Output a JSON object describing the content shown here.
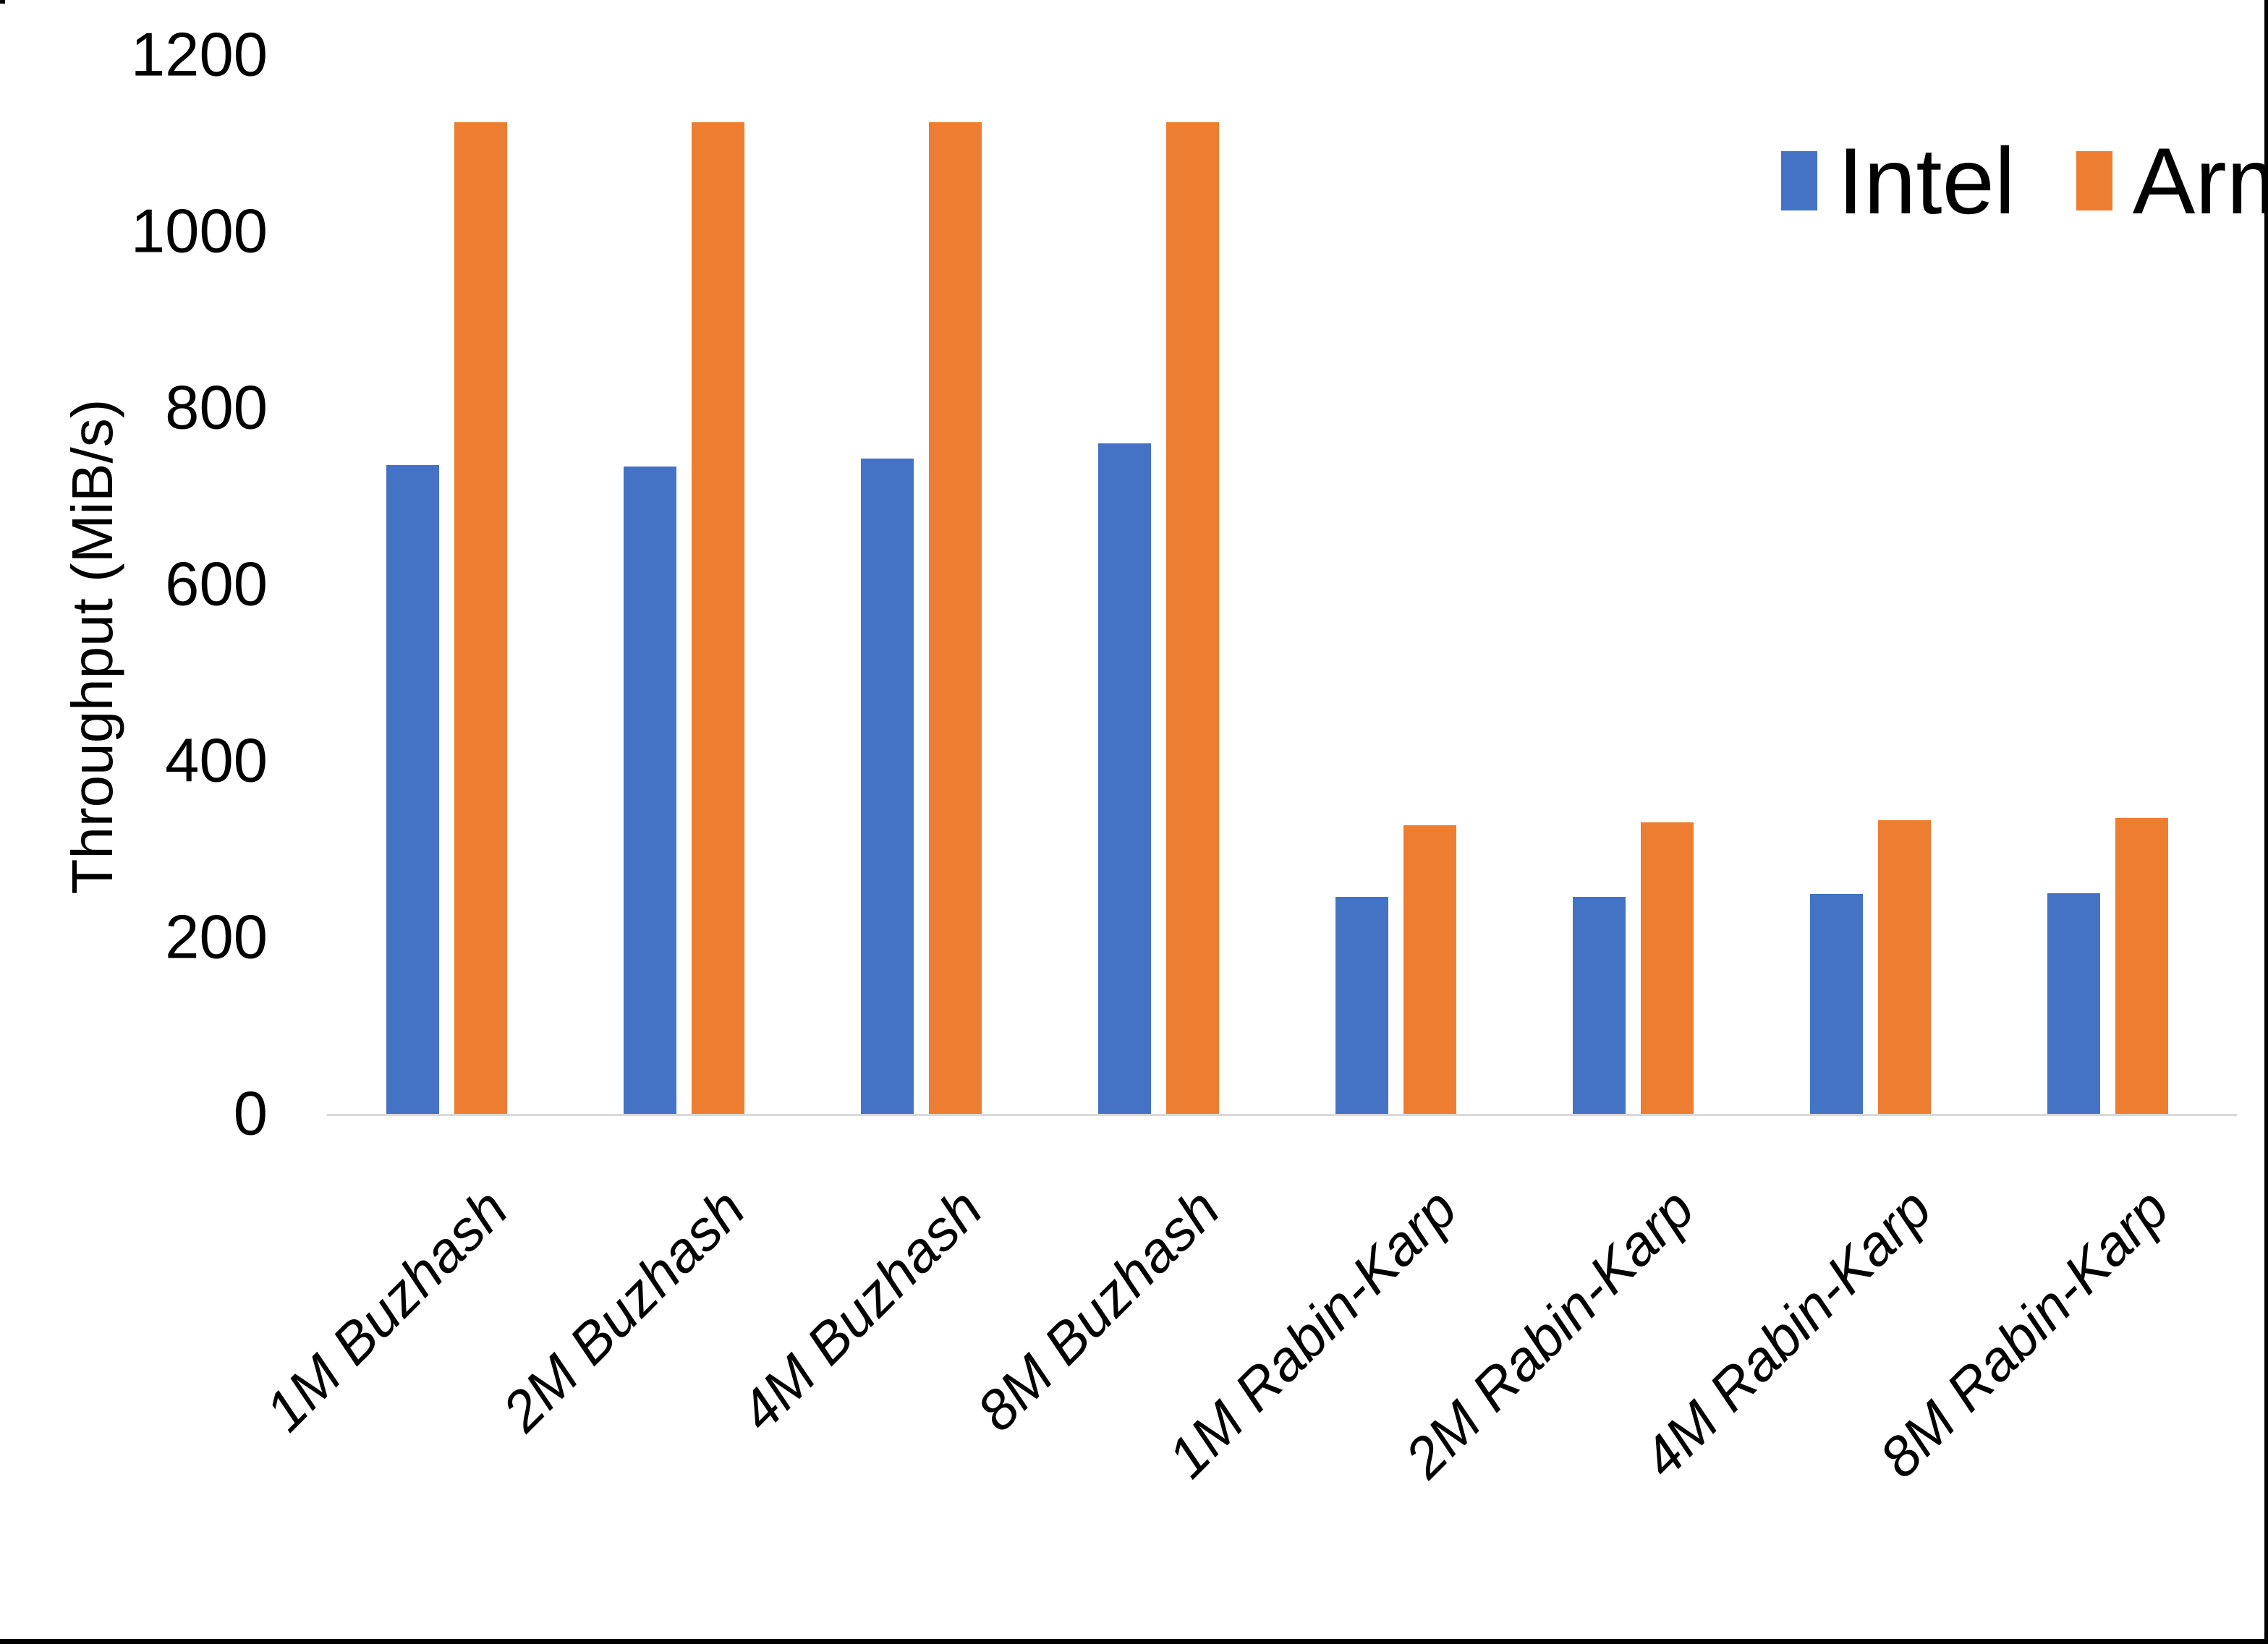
{
  "chart_data": {
    "type": "bar",
    "title": "",
    "ylabel": "Throughput (MiB/s)",
    "xlabel": "",
    "ylim": [
      0,
      1200
    ],
    "yticks": [
      0,
      200,
      400,
      600,
      800,
      1000,
      1200
    ],
    "grid": false,
    "legend_position": "top-right",
    "categories": [
      "1M Buzhash",
      "2M Buzhash",
      "4M Buzhash",
      "8M Buzhash",
      "1M Rabin-Karp",
      "2M Rabin-Karp",
      "4M Rabin-Karp",
      "8M Rabin-Karp"
    ],
    "series": [
      {
        "name": "Intel",
        "color": "#4472C4",
        "values": [
          735,
          734,
          743,
          760,
          246,
          246,
          249,
          250
        ]
      },
      {
        "name": "Arm",
        "color": "#ED7D31",
        "values": [
          1124,
          1124,
          1124,
          1124,
          327,
          330,
          333,
          335
        ]
      }
    ]
  },
  "colors": {
    "background": "#FFFFFF",
    "axis_line": "#D9D9D9",
    "text": "#000000",
    "frame_bar": "#000000"
  }
}
